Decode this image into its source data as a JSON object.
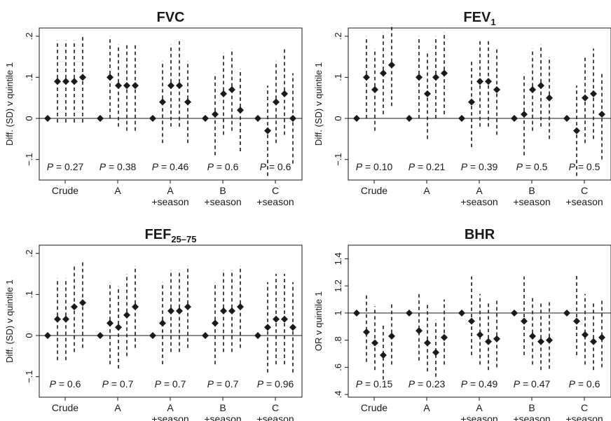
{
  "chart_data": [
    {
      "type": "scatter",
      "title": "FVC",
      "ylabel": "Diff. (SD) v quintile 1",
      "ylim": [
        -0.15,
        0.22
      ],
      "yticks": [
        -0.1,
        0,
        0.1,
        0.2
      ],
      "ytick_labels": [
        "−.1",
        "0",
        ".1",
        ".2"
      ],
      "reference_line": 0,
      "categories": [
        {
          "line1": "Crude",
          "line2": ""
        },
        {
          "line1": "A",
          "line2": ""
        },
        {
          "line1": "A",
          "line2": "+season"
        },
        {
          "line1": "B",
          "line2": "+season"
        },
        {
          "line1": "C",
          "line2": "+season"
        }
      ],
      "p_values": [
        "P = 0.27",
        "P = 0.38",
        "P = 0.46",
        "P = 0.6",
        "P = 0.6"
      ],
      "groups": [
        {
          "estimates": [
            0,
            0.09,
            0.09,
            0.09,
            0.1
          ],
          "lower": [
            null,
            -0.01,
            -0.01,
            -0.01,
            -0.01
          ],
          "upper": [
            null,
            0.19,
            0.19,
            0.19,
            0.2
          ]
        },
        {
          "estimates": [
            0,
            0.1,
            0.08,
            0.08,
            0.08
          ],
          "lower": [
            null,
            0,
            -0.02,
            -0.03,
            -0.03
          ],
          "upper": [
            null,
            0.2,
            0.18,
            0.18,
            0.18
          ]
        },
        {
          "estimates": [
            0,
            0.04,
            0.08,
            0.08,
            0.04
          ],
          "lower": [
            null,
            -0.06,
            -0.02,
            -0.02,
            -0.06
          ],
          "upper": [
            null,
            0.14,
            0.18,
            0.19,
            0.14
          ]
        },
        {
          "estimates": [
            0,
            0.01,
            0.06,
            0.07,
            0.02
          ],
          "lower": [
            null,
            -0.09,
            -0.04,
            -0.03,
            -0.08
          ],
          "upper": [
            null,
            0.11,
            0.16,
            0.17,
            0.12
          ]
        },
        {
          "estimates": [
            0,
            -0.03,
            0.04,
            0.06,
            0
          ],
          "lower": [
            null,
            -0.14,
            -0.06,
            -0.04,
            -0.11
          ],
          "upper": [
            null,
            0.08,
            0.14,
            0.17,
            0.11
          ]
        }
      ]
    },
    {
      "type": "scatter",
      "title": "FEV",
      "title_subscript": "1",
      "ylabel": "Diff. (SD) v quintile 1",
      "ylim": [
        -0.15,
        0.22
      ],
      "yticks": [
        -0.1,
        0,
        0.1,
        0.2
      ],
      "ytick_labels": [
        "−.1",
        "0",
        ".1",
        ".2"
      ],
      "reference_line": 0,
      "categories": [
        {
          "line1": "Crude",
          "line2": ""
        },
        {
          "line1": "A",
          "line2": ""
        },
        {
          "line1": "A",
          "line2": "+season"
        },
        {
          "line1": "B",
          "line2": "+season"
        },
        {
          "line1": "C",
          "line2": "+season"
        }
      ],
      "p_values": [
        "P = 0.10",
        "P = 0.21",
        "P = 0.39",
        "P = 0.5",
        "P = 0.5"
      ],
      "groups": [
        {
          "estimates": [
            0,
            0.1,
            0.07,
            0.11,
            0.13
          ],
          "lower": [
            null,
            0,
            -0.03,
            0.01,
            0.03
          ],
          "upper": [
            null,
            0.2,
            0.17,
            0.21,
            0.23
          ]
        },
        {
          "estimates": [
            0,
            0.1,
            0.06,
            0.1,
            0.11
          ],
          "lower": [
            null,
            0,
            -0.05,
            0,
            0.01
          ],
          "upper": [
            null,
            0.2,
            0.16,
            0.2,
            0.21
          ]
        },
        {
          "estimates": [
            0,
            0.04,
            0.09,
            0.09,
            0.07
          ],
          "lower": [
            null,
            -0.07,
            -0.02,
            -0.02,
            -0.04
          ],
          "upper": [
            null,
            0.14,
            0.19,
            0.19,
            0.17
          ]
        },
        {
          "estimates": [
            0,
            0.01,
            0.07,
            0.08,
            0.05
          ],
          "lower": [
            null,
            -0.09,
            -0.03,
            -0.02,
            -0.05
          ],
          "upper": [
            null,
            0.11,
            0.17,
            0.18,
            0.15
          ]
        },
        {
          "estimates": [
            0,
            -0.03,
            0.05,
            0.06,
            0.01
          ],
          "lower": [
            null,
            -0.14,
            -0.06,
            -0.05,
            -0.1
          ],
          "upper": [
            null,
            0.08,
            0.15,
            0.17,
            0.11
          ]
        }
      ]
    },
    {
      "type": "scatter",
      "title": "FEF",
      "title_subscript": "25–75",
      "ylabel": "Diff. (SD) v quintile 1",
      "ylim": [
        -0.15,
        0.22
      ],
      "yticks": [
        -0.1,
        0,
        0.1,
        0.2
      ],
      "ytick_labels": [
        "−.1",
        "0",
        ".1",
        ".2"
      ],
      "reference_line": 0,
      "categories": [
        {
          "line1": "Crude",
          "line2": ""
        },
        {
          "line1": "A",
          "line2": ""
        },
        {
          "line1": "A",
          "line2": "+season"
        },
        {
          "line1": "B",
          "line2": "+season"
        },
        {
          "line1": "C",
          "line2": "+season"
        }
      ],
      "p_values": [
        "P = 0.6",
        "P = 0.7",
        "P = 0.7",
        "P = 0.7",
        "P = 0.96"
      ],
      "groups": [
        {
          "estimates": [
            0,
            0.04,
            0.04,
            0.07,
            0.08
          ],
          "lower": [
            null,
            -0.06,
            -0.06,
            -0.04,
            -0.03
          ],
          "upper": [
            null,
            0.14,
            0.14,
            0.17,
            0.18
          ]
        },
        {
          "estimates": [
            0,
            0.03,
            0.02,
            0.05,
            0.07
          ],
          "lower": [
            null,
            -0.07,
            -0.08,
            -0.05,
            -0.03
          ],
          "upper": [
            null,
            0.13,
            0.12,
            0.15,
            0.17
          ]
        },
        {
          "estimates": [
            0,
            0.03,
            0.06,
            0.06,
            0.07
          ],
          "lower": [
            null,
            -0.07,
            -0.04,
            -0.04,
            -0.03
          ],
          "upper": [
            null,
            0.13,
            0.16,
            0.16,
            0.17
          ]
        },
        {
          "estimates": [
            0,
            0.03,
            0.06,
            0.06,
            0.07
          ],
          "lower": [
            null,
            -0.07,
            -0.04,
            -0.04,
            -0.03
          ],
          "upper": [
            null,
            0.13,
            0.16,
            0.16,
            0.17
          ]
        },
        {
          "estimates": [
            0,
            0.02,
            0.04,
            0.04,
            0.02
          ],
          "lower": [
            null,
            -0.09,
            -0.07,
            -0.07,
            -0.09
          ],
          "upper": [
            null,
            0.13,
            0.15,
            0.15,
            0.13
          ]
        }
      ]
    },
    {
      "type": "scatter",
      "title": "BHR",
      "ylabel": "OR v quintile 1",
      "ylim": [
        0.38,
        1.5
      ],
      "yticks": [
        0.4,
        0.6,
        0.8,
        1,
        1.2,
        1.4
      ],
      "ytick_labels": [
        ".4",
        ".6",
        ".8",
        "1",
        "1.2",
        "1.4"
      ],
      "reference_line": 1,
      "categories": [
        {
          "line1": "Crude",
          "line2": ""
        },
        {
          "line1": "A",
          "line2": ""
        },
        {
          "line1": "A",
          "line2": "+season"
        },
        {
          "line1": "B",
          "line2": "+season"
        },
        {
          "line1": "C",
          "line2": "+season"
        }
      ],
      "p_values": [
        "P = 0.15",
        "P = 0.23",
        "P = 0.49",
        "P = 0.47",
        "P = 0.6"
      ],
      "groups": [
        {
          "estimates": [
            1,
            0.86,
            0.78,
            0.69,
            0.83
          ],
          "lower": [
            null,
            0.64,
            0.58,
            0.51,
            0.62
          ],
          "upper": [
            null,
            1.15,
            1.05,
            0.92,
            1.08
          ]
        },
        {
          "estimates": [
            1,
            0.87,
            0.78,
            0.71,
            0.82
          ],
          "lower": [
            null,
            0.65,
            0.57,
            0.53,
            0.62
          ],
          "upper": [
            null,
            1.16,
            1.06,
            0.95,
            1.1
          ]
        },
        {
          "estimates": [
            1,
            0.94,
            0.84,
            0.79,
            0.81
          ],
          "lower": [
            null,
            0.69,
            0.62,
            0.58,
            0.6
          ],
          "upper": [
            null,
            1.27,
            1.14,
            1.08,
            1.1
          ]
        },
        {
          "estimates": [
            1,
            0.94,
            0.83,
            0.79,
            0.8
          ],
          "lower": [
            null,
            0.69,
            0.62,
            0.58,
            0.59
          ],
          "upper": [
            null,
            1.27,
            1.12,
            1.07,
            1.09
          ]
        },
        {
          "estimates": [
            1,
            0.94,
            0.84,
            0.79,
            0.82
          ],
          "lower": [
            null,
            0.69,
            0.62,
            0.58,
            0.6
          ],
          "upper": [
            null,
            1.28,
            1.14,
            1.08,
            1.11
          ]
        }
      ]
    }
  ]
}
